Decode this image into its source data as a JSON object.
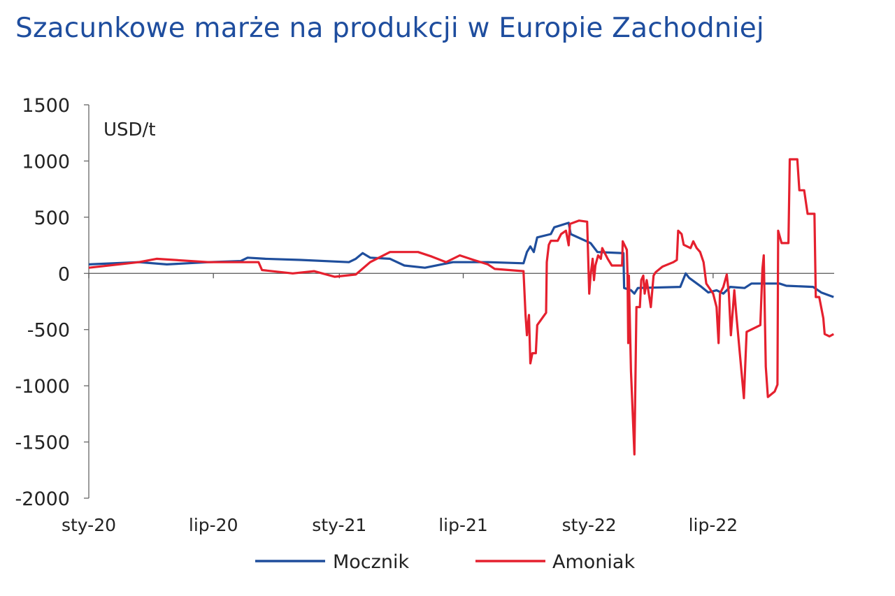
{
  "title": "Szacunkowe marże na produkcji w Europie Zachodniej",
  "chart_data": {
    "type": "line",
    "title": "Szacunkowe marże na produkcji w Europie Zachodniej",
    "unit_label": "USD/t",
    "ylim": [
      -2000,
      1500
    ],
    "yticks": [
      "1500",
      "1000",
      "500",
      "0",
      "-500",
      "-1000",
      "-1500",
      "-2000"
    ],
    "xlim": [
      "2020-01-01",
      "2023-01-01"
    ],
    "xticks": [
      {
        "label": "sty-20",
        "date": "2020-01-01"
      },
      {
        "label": "lip-20",
        "date": "2020-07-01"
      },
      {
        "label": "sty-21",
        "date": "2021-01-01"
      },
      {
        "label": "lip-21",
        "date": "2021-07-01"
      },
      {
        "label": "sty-22",
        "date": "2022-01-01"
      },
      {
        "label": "lip-22",
        "date": "2022-07-01"
      }
    ],
    "grid": false,
    "legend_position": "bottom",
    "series": [
      {
        "name": "Mocznik",
        "color": "#1f4e9c",
        "points": [
          [
            "2020-01-01",
            80
          ],
          [
            "2020-03-14",
            100
          ],
          [
            "2020-04-24",
            80
          ],
          [
            "2020-06-24",
            100
          ],
          [
            "2020-08-10",
            110
          ],
          [
            "2020-08-20",
            140
          ],
          [
            "2020-09-15",
            130
          ],
          [
            "2020-11-05",
            120
          ],
          [
            "2021-01-15",
            100
          ],
          [
            "2021-01-25",
            130
          ],
          [
            "2021-02-04",
            180
          ],
          [
            "2021-02-15",
            140
          ],
          [
            "2021-03-16",
            130
          ],
          [
            "2021-04-06",
            70
          ],
          [
            "2021-05-06",
            50
          ],
          [
            "2021-06-16",
            100
          ],
          [
            "2021-08-06",
            100
          ],
          [
            "2021-09-27",
            90
          ],
          [
            "2021-10-02",
            190
          ],
          [
            "2021-10-07",
            240
          ],
          [
            "2021-10-12",
            190
          ],
          [
            "2021-10-17",
            320
          ],
          [
            "2021-11-06",
            350
          ],
          [
            "2021-11-11",
            410
          ],
          [
            "2021-12-02",
            450
          ],
          [
            "2021-12-05",
            350
          ],
          [
            "2022-01-03",
            270
          ],
          [
            "2022-01-13",
            190
          ],
          [
            "2022-02-20",
            180
          ],
          [
            "2022-02-21",
            -130
          ],
          [
            "2022-03-03",
            -150
          ],
          [
            "2022-03-08",
            -180
          ],
          [
            "2022-03-13",
            -130
          ],
          [
            "2022-05-14",
            -120
          ],
          [
            "2022-05-22",
            0
          ],
          [
            "2022-05-27",
            -40
          ],
          [
            "2022-06-14",
            -120
          ],
          [
            "2022-06-24",
            -170
          ],
          [
            "2022-07-06",
            -150
          ],
          [
            "2022-07-16",
            -180
          ],
          [
            "2022-07-26",
            -120
          ],
          [
            "2022-08-16",
            -130
          ],
          [
            "2022-08-26",
            -90
          ],
          [
            "2022-10-06",
            -90
          ],
          [
            "2022-10-16",
            -110
          ],
          [
            "2022-11-24",
            -120
          ],
          [
            "2022-12-06",
            -170
          ],
          [
            "2022-12-24",
            -210
          ]
        ]
      },
      {
        "name": "Amoniak",
        "color": "#e5202e",
        "points": [
          [
            "2020-01-01",
            50
          ],
          [
            "2020-03-14",
            100
          ],
          [
            "2020-04-09",
            130
          ],
          [
            "2020-06-24",
            100
          ],
          [
            "2020-09-05",
            100
          ],
          [
            "2020-09-10",
            30
          ],
          [
            "2020-10-25",
            0
          ],
          [
            "2020-11-25",
            20
          ],
          [
            "2020-12-25",
            -30
          ],
          [
            "2021-01-25",
            -10
          ],
          [
            "2021-02-15",
            100
          ],
          [
            "2021-03-16",
            190
          ],
          [
            "2021-04-26",
            190
          ],
          [
            "2021-05-16",
            150
          ],
          [
            "2021-06-06",
            100
          ],
          [
            "2021-06-26",
            160
          ],
          [
            "2021-07-16",
            120
          ],
          [
            "2021-08-06",
            80
          ],
          [
            "2021-08-16",
            40
          ],
          [
            "2021-09-27",
            20
          ],
          [
            "2021-09-30",
            -370
          ],
          [
            "2021-10-02",
            -550
          ],
          [
            "2021-10-05",
            -370
          ],
          [
            "2021-10-07",
            -800
          ],
          [
            "2021-10-10",
            -710
          ],
          [
            "2021-10-15",
            -710
          ],
          [
            "2021-10-17",
            -460
          ],
          [
            "2021-10-30",
            -350
          ],
          [
            "2021-10-31",
            100
          ],
          [
            "2021-11-03",
            255
          ],
          [
            "2021-11-06",
            290
          ],
          [
            "2021-11-16",
            290
          ],
          [
            "2021-11-21",
            350
          ],
          [
            "2021-11-28",
            380
          ],
          [
            "2021-12-02",
            250
          ],
          [
            "2021-12-04",
            440
          ],
          [
            "2021-12-17",
            470
          ],
          [
            "2021-12-29",
            460
          ],
          [
            "2022-01-01",
            -180
          ],
          [
            "2022-01-03",
            -20
          ],
          [
            "2022-01-06",
            130
          ],
          [
            "2022-01-08",
            -60
          ],
          [
            "2022-01-10",
            70
          ],
          [
            "2022-01-14",
            160
          ],
          [
            "2022-01-18",
            130
          ],
          [
            "2022-01-20",
            225
          ],
          [
            "2022-01-28",
            130
          ],
          [
            "2022-02-03",
            70
          ],
          [
            "2022-02-18",
            70
          ],
          [
            "2022-02-19",
            285
          ],
          [
            "2022-02-25",
            210
          ],
          [
            "2022-02-26",
            -20
          ],
          [
            "2022-02-27",
            -620
          ],
          [
            "2022-02-28",
            -20
          ],
          [
            "2022-03-03",
            -870
          ],
          [
            "2022-03-08",
            -1610
          ],
          [
            "2022-03-11",
            -300
          ],
          [
            "2022-03-16",
            -300
          ],
          [
            "2022-03-18",
            -60
          ],
          [
            "2022-03-21",
            -20
          ],
          [
            "2022-03-23",
            -180
          ],
          [
            "2022-03-26",
            -60
          ],
          [
            "2022-04-01",
            -300
          ],
          [
            "2022-04-05",
            -20
          ],
          [
            "2022-04-08",
            10
          ],
          [
            "2022-04-18",
            60
          ],
          [
            "2022-05-04",
            100
          ],
          [
            "2022-05-09",
            120
          ],
          [
            "2022-05-11",
            380
          ],
          [
            "2022-05-16",
            350
          ],
          [
            "2022-05-19",
            255
          ],
          [
            "2022-05-29",
            225
          ],
          [
            "2022-06-02",
            285
          ],
          [
            "2022-06-07",
            225
          ],
          [
            "2022-06-12",
            190
          ],
          [
            "2022-06-17",
            100
          ],
          [
            "2022-06-21",
            -90
          ],
          [
            "2022-07-01",
            -180
          ],
          [
            "2022-07-06",
            -300
          ],
          [
            "2022-07-09",
            -620
          ],
          [
            "2022-07-11",
            -180
          ],
          [
            "2022-07-16",
            -120
          ],
          [
            "2022-07-21",
            -10
          ],
          [
            "2022-07-24",
            -180
          ],
          [
            "2022-07-27",
            -550
          ],
          [
            "2022-08-01",
            -150
          ],
          [
            "2022-08-04",
            -370
          ],
          [
            "2022-08-15",
            -1110
          ],
          [
            "2022-08-19",
            -520
          ],
          [
            "2022-09-08",
            -460
          ],
          [
            "2022-09-11",
            40
          ],
          [
            "2022-09-13",
            160
          ],
          [
            "2022-09-16",
            -830
          ],
          [
            "2022-09-19",
            -1100
          ],
          [
            "2022-09-29",
            -1050
          ],
          [
            "2022-10-03",
            -990
          ],
          [
            "2022-10-04",
            380
          ],
          [
            "2022-10-09",
            270
          ],
          [
            "2022-10-19",
            270
          ],
          [
            "2022-10-21",
            1015
          ],
          [
            "2022-11-01",
            1015
          ],
          [
            "2022-11-04",
            740
          ],
          [
            "2022-11-11",
            740
          ],
          [
            "2022-11-16",
            530
          ],
          [
            "2022-11-26",
            530
          ],
          [
            "2022-11-28",
            -210
          ],
          [
            "2022-12-03",
            -210
          ],
          [
            "2022-12-09",
            -400
          ],
          [
            "2022-12-11",
            -540
          ],
          [
            "2022-12-18",
            -560
          ],
          [
            "2022-12-24",
            -540
          ]
        ]
      }
    ]
  }
}
